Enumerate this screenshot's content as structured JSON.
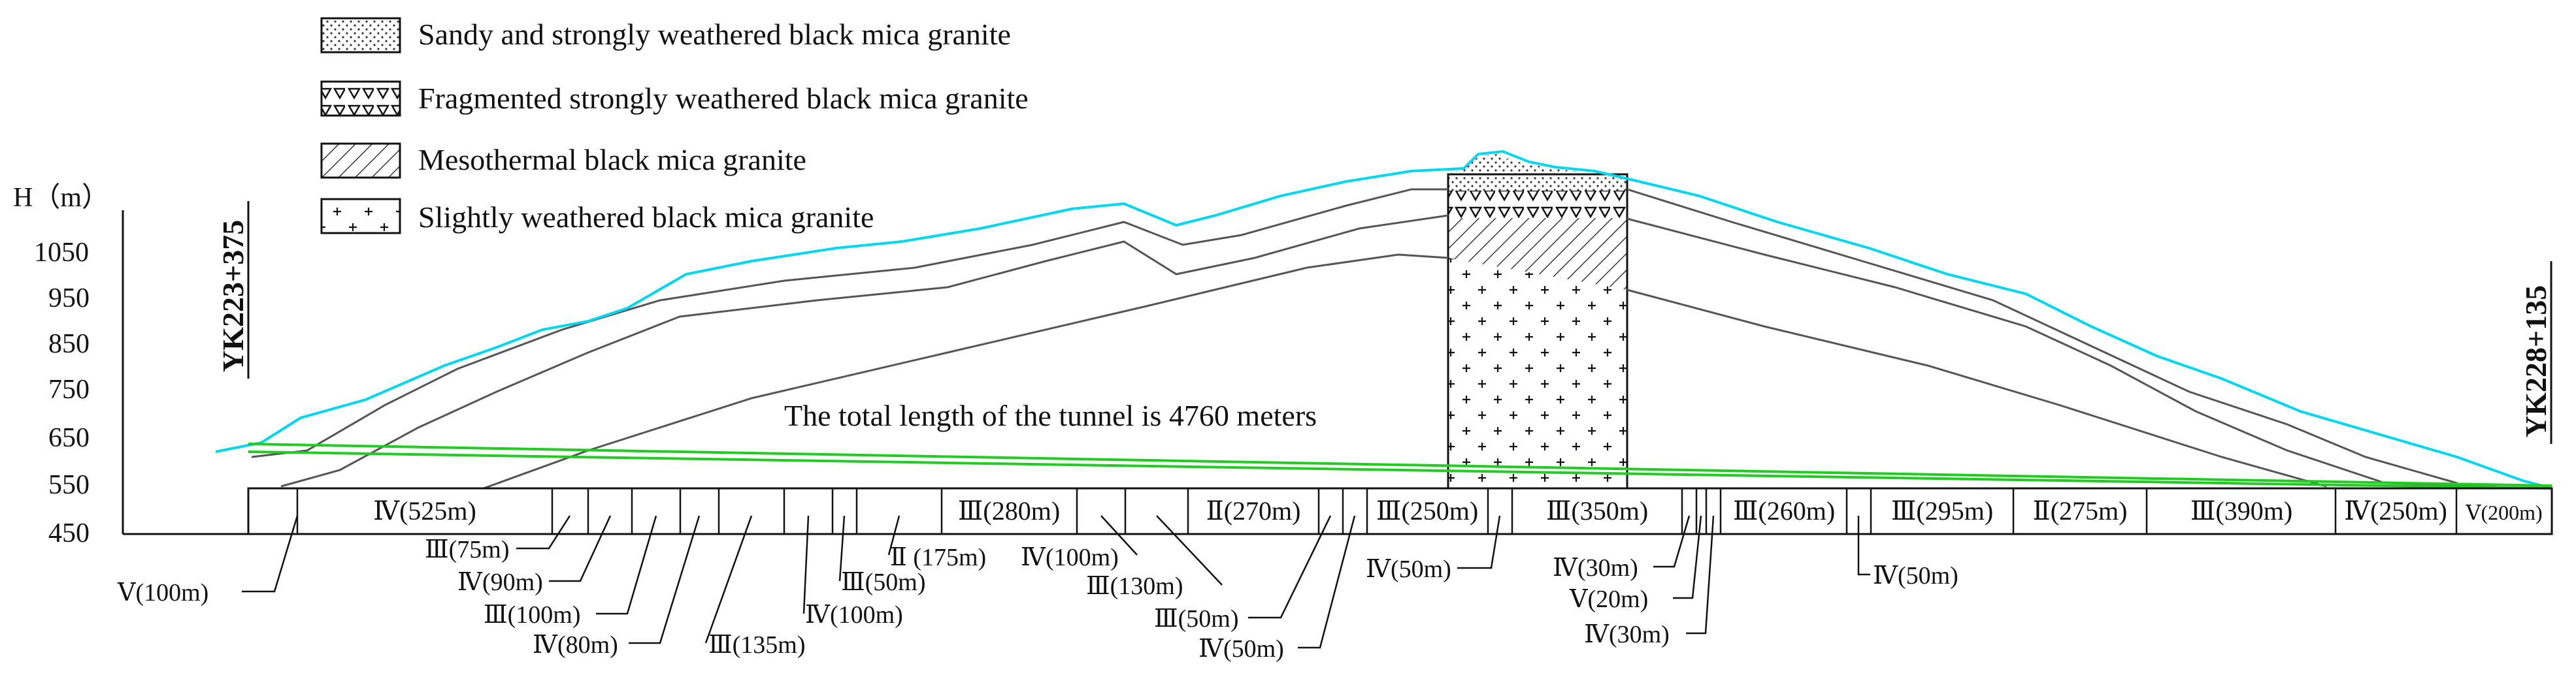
{
  "legend": [
    {
      "label": "Sandy and strongly weathered black mica granite",
      "pattern": "dots"
    },
    {
      "label": "Fragmented strongly weathered black mica granite",
      "pattern": "triangles"
    },
    {
      "label": "Mesothermal black mica granite",
      "pattern": "hatch"
    },
    {
      "label": "Slightly weathered black mica granite",
      "pattern": "crosses"
    }
  ],
  "axis": {
    "label": "H（m）",
    "ticks": [
      "1050",
      "950",
      "850",
      "750",
      "650",
      "550",
      "450"
    ]
  },
  "stations": {
    "start": "YK223+375",
    "end": "YK228+135"
  },
  "annotation": "The total length of the tunnel is 4760 meters",
  "segments_inline": [
    "Ⅳ(525m)",
    "Ⅲ(280m)",
    "Ⅱ(270m)",
    "Ⅲ(250m)",
    "Ⅲ(350m)",
    "Ⅲ(260m)",
    "Ⅲ(295m)",
    "Ⅱ(275m)",
    "Ⅲ(390m)",
    "Ⅳ(250m)",
    "Ⅴ(200m)"
  ],
  "segments_callout": [
    "Ⅴ(100m)",
    "Ⅲ(75m)",
    "Ⅳ(90m)",
    "Ⅲ(100m)",
    "Ⅳ(80m)",
    "Ⅲ(135m)",
    "Ⅳ(100m)",
    "Ⅲ(50m)",
    "Ⅱ (175m)",
    "Ⅳ(100m)",
    "Ⅲ(130m)",
    "Ⅲ(50m)",
    "Ⅳ(50m)",
    "Ⅳ(50m)",
    "Ⅳ(30m)",
    "Ⅴ(20m)",
    "Ⅳ(30m)",
    "Ⅳ(50m)"
  ],
  "colors": {
    "terrain": "#00d8f0",
    "tunnel": "#22cc22",
    "strata": "#555555"
  }
}
